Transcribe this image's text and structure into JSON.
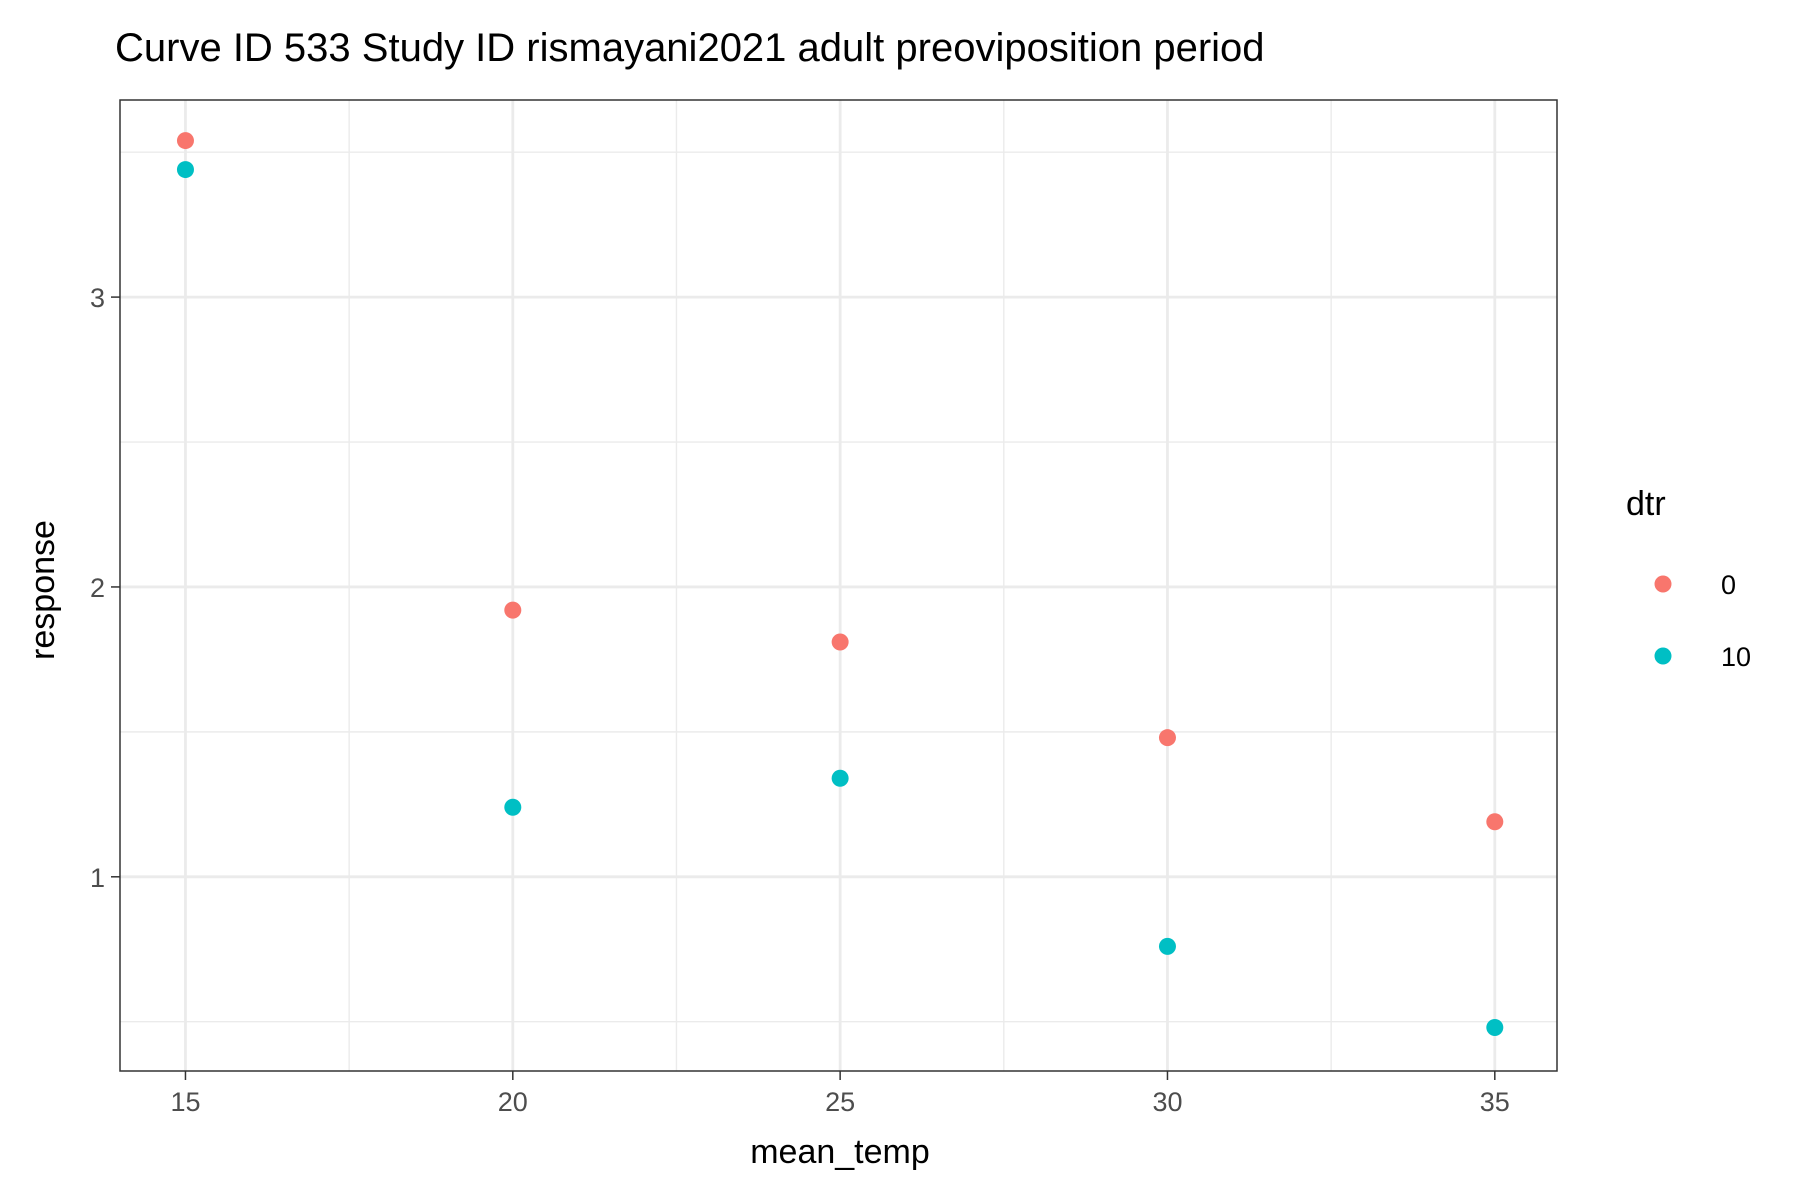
{
  "chart_data": {
    "type": "scatter",
    "title": "Curve ID 533 Study ID rismayani2021 adult preoviposition period",
    "xlabel": "mean_temp",
    "ylabel": "response",
    "xlim": [
      14.0,
      35.95
    ],
    "ylim": [
      0.33,
      3.68
    ],
    "x_ticks": [
      "15",
      "20",
      "25",
      "30",
      "35"
    ],
    "y_ticks": [
      "1",
      "2",
      "3"
    ],
    "grid": true,
    "legend": {
      "title": "dtr",
      "position": "right"
    },
    "series": [
      {
        "name": "0",
        "color": "#F8766D",
        "x": [
          15,
          20,
          25,
          30,
          35
        ],
        "y": [
          3.54,
          1.92,
          1.81,
          1.48,
          1.19
        ]
      },
      {
        "name": "10",
        "color": "#00BFC4",
        "x": [
          15,
          20,
          25,
          30,
          35
        ],
        "y": [
          3.44,
          1.24,
          1.34,
          0.76,
          0.48
        ]
      }
    ]
  }
}
